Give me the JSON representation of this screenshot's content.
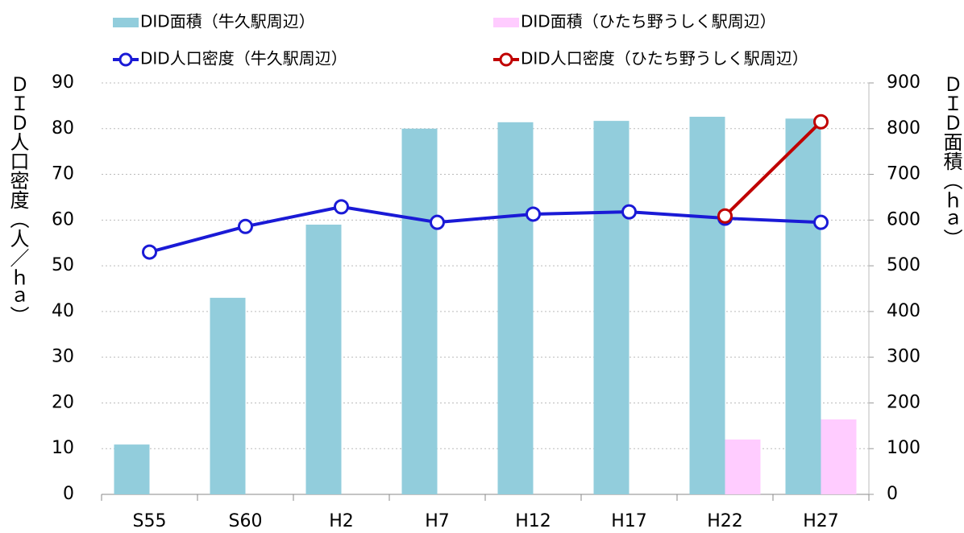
{
  "chart_data": {
    "type": "bar-line",
    "categories": [
      "S55",
      "S60",
      "H2",
      "H7",
      "H12",
      "H17",
      "H22",
      "H27"
    ],
    "series": [
      {
        "name": "DID面積（牛久駅周辺）",
        "type": "bar",
        "axis": "y2",
        "color": "#92cddc",
        "values": [
          109,
          430,
          590,
          800,
          814,
          817,
          826,
          822
        ]
      },
      {
        "name": "DID面積（ひたち野うしく駅周辺）",
        "type": "bar",
        "axis": "y2",
        "color": "#ffccff",
        "values": [
          null,
          null,
          null,
          null,
          null,
          null,
          120,
          164
        ]
      },
      {
        "name": "DID人口密度（牛久駅周辺）",
        "type": "line",
        "axis": "y",
        "color": "#1a1ad6",
        "values": [
          53.0,
          58.6,
          62.9,
          59.5,
          61.3,
          61.8,
          60.4,
          59.5
        ]
      },
      {
        "name": "DID人口密度（ひたち野うしく駅周辺）",
        "type": "line",
        "axis": "y",
        "color": "#c00000",
        "values": [
          null,
          null,
          null,
          null,
          null,
          null,
          60.9,
          81.5
        ]
      }
    ],
    "ylabel": "ＤＩＤ人口密度（人／ｈａ）",
    "y2label": "ＤＩＤ面積（ｈａ）",
    "ylim": [
      0,
      90
    ],
    "yticks": [
      0,
      10,
      20,
      30,
      40,
      50,
      60,
      70,
      80,
      90
    ],
    "y2lim": [
      0,
      900
    ],
    "y2ticks": [
      0,
      100,
      200,
      300,
      400,
      500,
      600,
      700,
      800,
      900
    ],
    "grid": true
  }
}
